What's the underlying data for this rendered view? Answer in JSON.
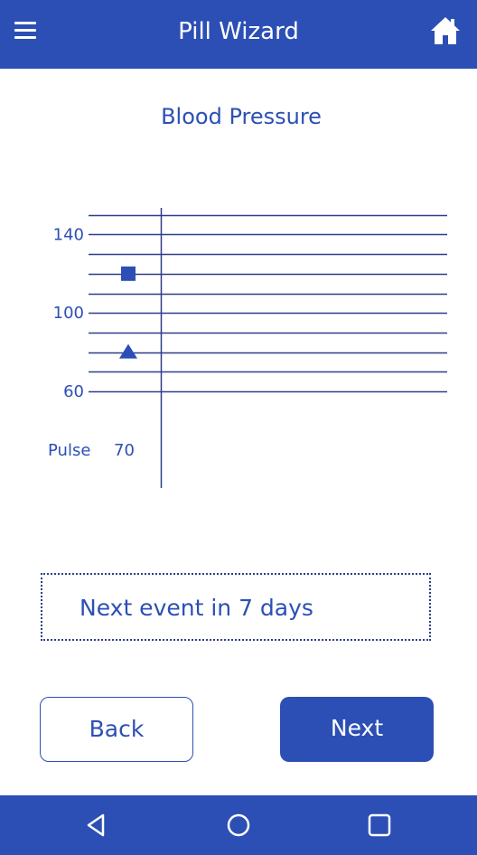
{
  "app_bar": {
    "title": "Pill Wizard",
    "menu_icon": "hamburger-menu-icon",
    "home_icon": "home-icon"
  },
  "chart_data": {
    "type": "scatter",
    "title": "Blood Pressure",
    "y_ticks": [
      {
        "value": 140,
        "label": "140"
      },
      {
        "value": 100,
        "label": "100"
      },
      {
        "value": 60,
        "label": "60"
      }
    ],
    "ylim": [
      60,
      150
    ],
    "gridline_step": 10,
    "series": [
      {
        "marker": "square",
        "values": [
          120
        ]
      },
      {
        "marker": "triangle",
        "values": [
          80
        ]
      }
    ],
    "pulse_label": "Pulse",
    "pulse_values": [
      "70"
    ]
  },
  "event": {
    "text": "Next event in 7 days"
  },
  "buttons": {
    "back": "Back",
    "next": "Next"
  },
  "nav_bar": {
    "icons": [
      "back-triangle-icon",
      "home-circle-icon",
      "recents-square-icon"
    ]
  },
  "colors": {
    "primary": "#2c4fb5",
    "line": "#2c3f88",
    "background": "#ffffff"
  }
}
